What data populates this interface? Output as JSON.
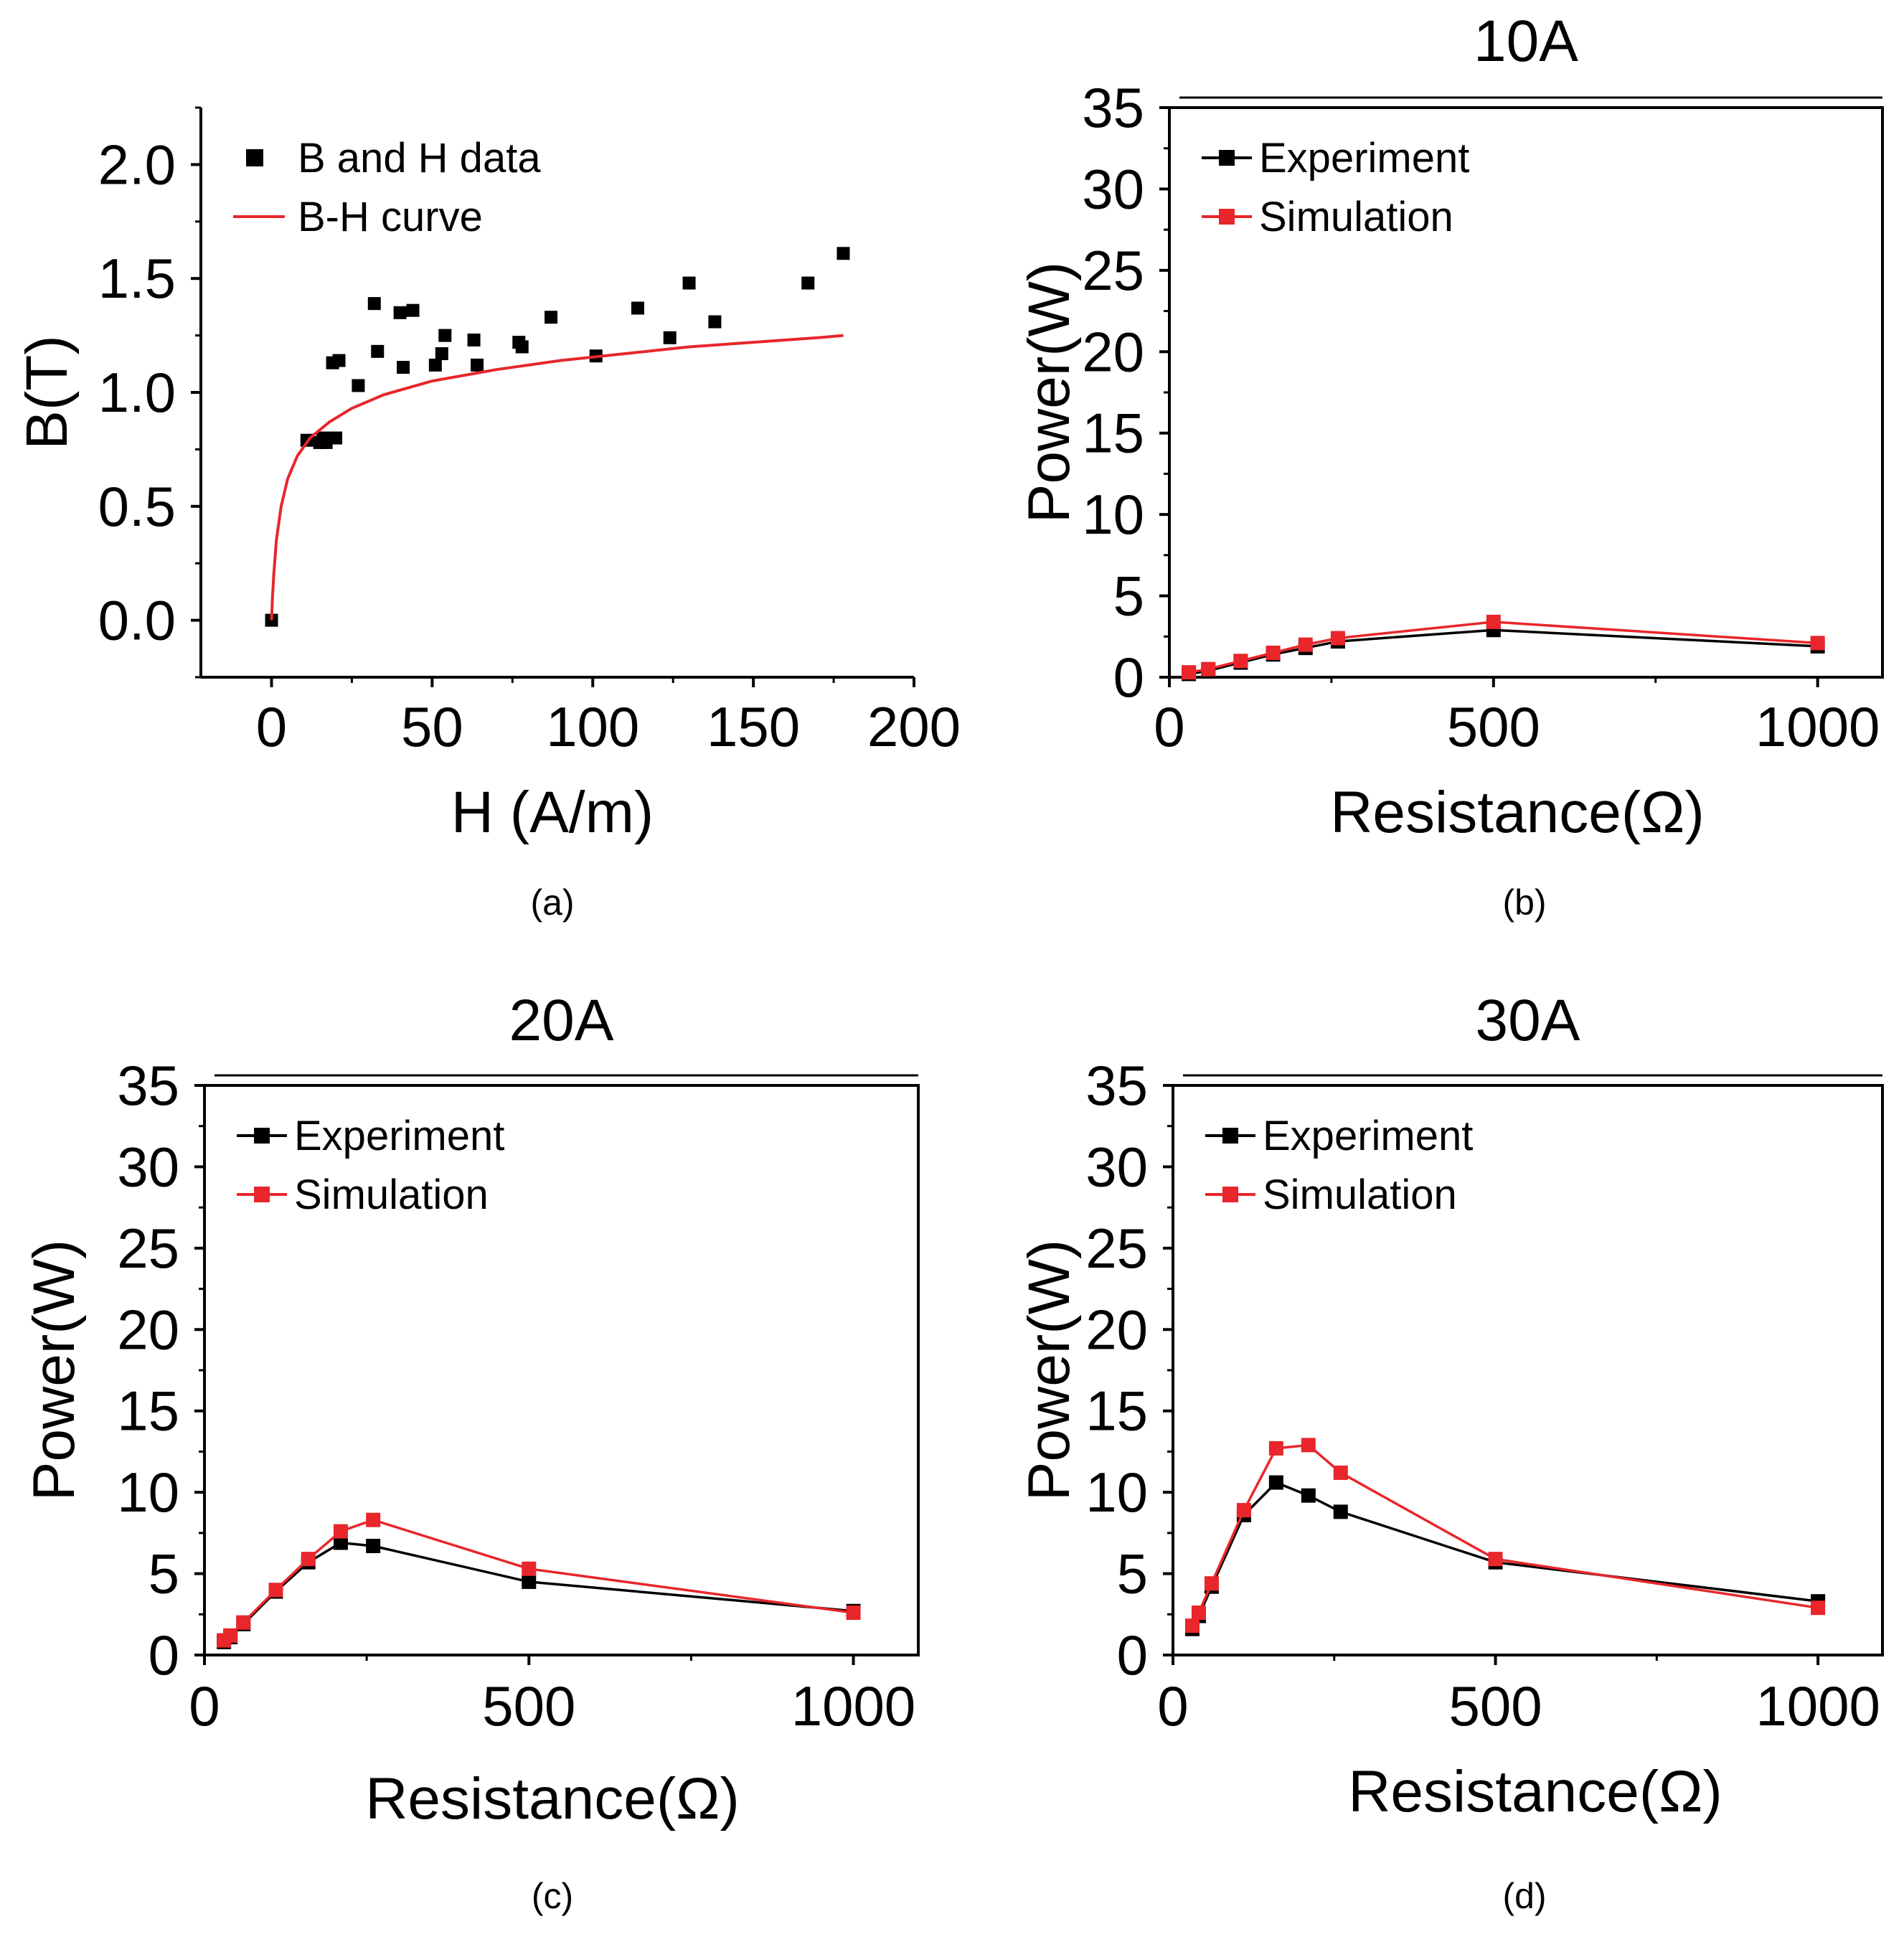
{
  "chart_data": [
    {
      "id": "a",
      "type": "scatter",
      "caption": "(a)",
      "title": "",
      "xlabel": "H (A/m)",
      "ylabel": "B(T)",
      "xlim": [
        -22,
        200
      ],
      "ylim": [
        -0.25,
        2.25
      ],
      "xticks": [
        0,
        50,
        100,
        150,
        200
      ],
      "xtick_labels": [
        "0",
        "50",
        "100",
        "150",
        "200"
      ],
      "yticks": [
        0.0,
        0.5,
        1.0,
        1.5,
        2.0
      ],
      "ytick_labels": [
        "0.0",
        "0.5",
        "1.0",
        "1.5",
        "2.0"
      ],
      "legend": {
        "position": "top-left",
        "entries": [
          "B and H data",
          "B-H curve"
        ]
      },
      "series": [
        {
          "name": "B and H data",
          "kind": "scatter",
          "color": "#000000",
          "points": [
            [
              0,
              0
            ],
            [
              11,
              0.79
            ],
            [
              15,
              0.78
            ],
            [
              16,
              0.8
            ],
            [
              17,
              0.78
            ],
            [
              19,
              1.13
            ],
            [
              20,
              0.8
            ],
            [
              21,
              1.14
            ],
            [
              27,
              1.03
            ],
            [
              32,
              1.39
            ],
            [
              33,
              1.18
            ],
            [
              40,
              1.35
            ],
            [
              41,
              1.11
            ],
            [
              44,
              1.36
            ],
            [
              51,
              1.12
            ],
            [
              53,
              1.17
            ],
            [
              54,
              1.25
            ],
            [
              63,
              1.23
            ],
            [
              64,
              1.12
            ],
            [
              77,
              1.22
            ],
            [
              78,
              1.2
            ],
            [
              87,
              1.33
            ],
            [
              101,
              1.16
            ],
            [
              114,
              1.37
            ],
            [
              124,
              1.24
            ],
            [
              130,
              1.48
            ],
            [
              138,
              1.31
            ],
            [
              167,
              1.48
            ],
            [
              178,
              1.61
            ]
          ]
        },
        {
          "name": "B-H curve",
          "kind": "line",
          "color": "#e8262b",
          "points": [
            [
              0,
              0
            ],
            [
              0.3,
              0.1
            ],
            [
              0.7,
              0.2
            ],
            [
              1.5,
              0.35
            ],
            [
              3,
              0.5
            ],
            [
              5,
              0.62
            ],
            [
              8,
              0.72
            ],
            [
              12,
              0.8
            ],
            [
              18,
              0.87
            ],
            [
              25,
              0.93
            ],
            [
              35,
              0.99
            ],
            [
              50,
              1.05
            ],
            [
              70,
              1.1
            ],
            [
              90,
              1.14
            ],
            [
              110,
              1.17
            ],
            [
              130,
              1.2
            ],
            [
              150,
              1.22
            ],
            [
              170,
              1.24
            ],
            [
              178,
              1.25
            ]
          ]
        }
      ]
    },
    {
      "id": "b",
      "type": "line",
      "caption": "(b)",
      "title": "10A",
      "xlabel": "Resistance(Ω)",
      "ylabel": "Power(W)",
      "xlim": [
        0,
        1100
      ],
      "ylim": [
        0,
        35
      ],
      "xticks": [
        0,
        500,
        1000
      ],
      "xtick_labels": [
        "0",
        "500",
        "1000"
      ],
      "yticks": [
        0,
        5,
        10,
        15,
        20,
        25,
        30,
        35
      ],
      "ytick_labels": [
        "0",
        "5",
        "10",
        "15",
        "20",
        "25",
        "30",
        "35"
      ],
      "legend": {
        "position": "top-left",
        "entries": [
          "Experiment",
          "Simulation"
        ]
      },
      "series": [
        {
          "name": "Experiment",
          "color": "#000000",
          "x": [
            30,
            60,
            110,
            160,
            210,
            260,
            500,
            1000
          ],
          "y": [
            0.2,
            0.4,
            0.9,
            1.4,
            1.8,
            2.2,
            2.9,
            1.9
          ]
        },
        {
          "name": "Simulation",
          "color": "#e8262b",
          "x": [
            30,
            60,
            110,
            160,
            210,
            260,
            500,
            1000
          ],
          "y": [
            0.3,
            0.5,
            1.0,
            1.5,
            2.0,
            2.4,
            3.4,
            2.1
          ]
        }
      ]
    },
    {
      "id": "c",
      "type": "line",
      "caption": "(c)",
      "title": "20A",
      "xlabel": "Resistance(Ω)",
      "ylabel": "Power(W)",
      "xlim": [
        0,
        1100
      ],
      "ylim": [
        0,
        35
      ],
      "xticks": [
        0,
        500,
        1000
      ],
      "xtick_labels": [
        "0",
        "500",
        "1000"
      ],
      "yticks": [
        0,
        5,
        10,
        15,
        20,
        25,
        30,
        35
      ],
      "ytick_labels": [
        "0",
        "5",
        "10",
        "15",
        "20",
        "25",
        "30",
        "35"
      ],
      "legend": {
        "position": "top-left",
        "entries": [
          "Experiment",
          "Simulation"
        ]
      },
      "series": [
        {
          "name": "Experiment",
          "color": "#000000",
          "x": [
            30,
            40,
            60,
            110,
            160,
            210,
            260,
            500,
            1000
          ],
          "y": [
            0.8,
            1.1,
            1.9,
            3.9,
            5.7,
            6.9,
            6.7,
            4.5,
            2.7
          ]
        },
        {
          "name": "Simulation",
          "color": "#e8262b",
          "x": [
            30,
            40,
            60,
            110,
            160,
            210,
            260,
            500,
            1000
          ],
          "y": [
            0.9,
            1.2,
            2.0,
            4.0,
            5.9,
            7.6,
            8.3,
            5.3,
            2.6
          ]
        }
      ]
    },
    {
      "id": "d",
      "type": "line",
      "caption": "(d)",
      "title": "30A",
      "xlabel": "Resistance(Ω)",
      "ylabel": "Power(W)",
      "xlim": [
        0,
        1100
      ],
      "ylim": [
        0,
        35
      ],
      "xticks": [
        0,
        500,
        1000
      ],
      "xtick_labels": [
        "0",
        "500",
        "1000"
      ],
      "yticks": [
        0,
        5,
        10,
        15,
        20,
        25,
        30,
        35
      ],
      "ytick_labels": [
        "0",
        "5",
        "10",
        "15",
        "20",
        "25",
        "30",
        "35"
      ],
      "legend": {
        "position": "top-left",
        "entries": [
          "Experiment",
          "Simulation"
        ]
      },
      "series": [
        {
          "name": "Experiment",
          "color": "#000000",
          "x": [
            30,
            40,
            60,
            110,
            160,
            210,
            260,
            500,
            1000
          ],
          "y": [
            1.6,
            2.4,
            4.2,
            8.6,
            10.6,
            9.8,
            8.8,
            5.7,
            3.3
          ]
        },
        {
          "name": "Simulation",
          "color": "#e8262b",
          "x": [
            30,
            40,
            60,
            110,
            160,
            210,
            260,
            500,
            1000
          ],
          "y": [
            1.8,
            2.6,
            4.4,
            8.9,
            12.7,
            12.9,
            11.2,
            5.9,
            2.9
          ]
        }
      ]
    }
  ]
}
